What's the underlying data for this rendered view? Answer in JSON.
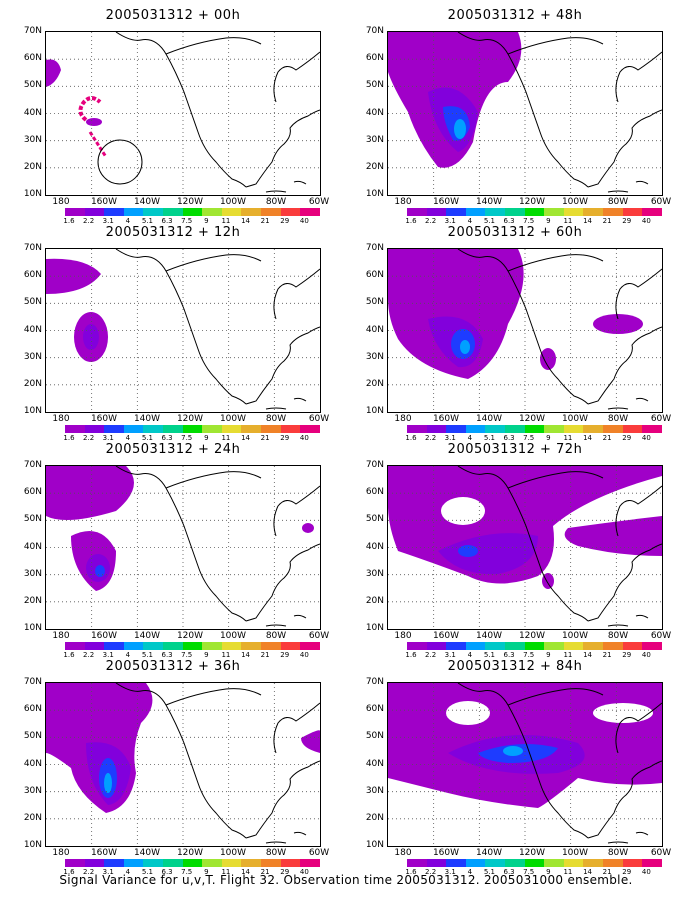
{
  "panels": [
    {
      "title": "2005031312 + 00h"
    },
    {
      "title": "2005031312 + 48h"
    },
    {
      "title": "2005031312 + 12h"
    },
    {
      "title": "2005031312 + 60h"
    },
    {
      "title": "2005031312 + 24h"
    },
    {
      "title": "2005031312 + 72h"
    },
    {
      "title": "2005031312 + 36h"
    },
    {
      "title": "2005031312 + 84h"
    }
  ],
  "lat_labels": [
    "70N",
    "60N",
    "50N",
    "40N",
    "30N",
    "20N",
    "10N"
  ],
  "lon_labels": [
    "180",
    "160W",
    "140W",
    "120W",
    "100W",
    "80W",
    "60W"
  ],
  "colorbar": {
    "labels": [
      "1.6",
      "2.2",
      "3.1",
      "4",
      "5.1",
      "6.3",
      "7.5",
      "9",
      "11",
      "14",
      "21",
      "29",
      "40"
    ],
    "colors": [
      "#a000c8",
      "#8200dc",
      "#1e3cff",
      "#00a0ff",
      "#00c8c8",
      "#00d28c",
      "#00dc00",
      "#a0e632",
      "#e6dc32",
      "#e6af2d",
      "#f08228",
      "#fa3c3c",
      "#e6007d"
    ]
  },
  "caption": "Signal Variance for u,v,T. Flight 32. Observation time 2005031312. 2005031000 ensemble."
}
